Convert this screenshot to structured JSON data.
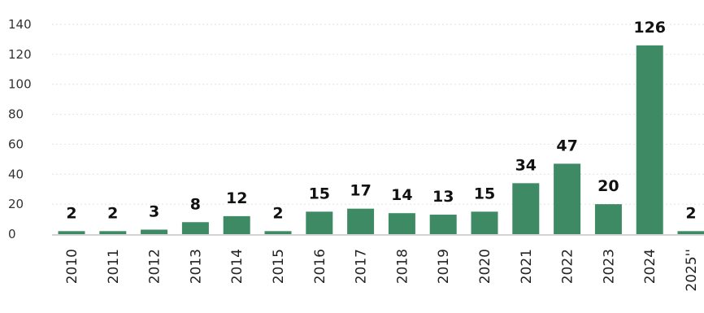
{
  "chart_data": {
    "type": "bar",
    "categories": [
      "2010",
      "2011",
      "2012",
      "2013",
      "2014",
      "2015",
      "2016",
      "2017",
      "2018",
      "2019",
      "2020",
      "2021",
      "2022",
      "2023",
      "2024",
      "2025''"
    ],
    "values": [
      2,
      2,
      3,
      8,
      12,
      2,
      15,
      17,
      14,
      13,
      15,
      34,
      47,
      20,
      126,
      2
    ],
    "data_labels": [
      "2",
      "2",
      "3",
      "8",
      "12",
      "2",
      "15",
      "17",
      "14",
      "13",
      "15",
      "34",
      "47",
      "20",
      "126",
      "2"
    ],
    "ylim": [
      0,
      140
    ],
    "yticks": [
      0,
      20,
      40,
      60,
      80,
      100,
      120,
      140
    ],
    "ytick_labels": [
      "0",
      "20",
      "40",
      "60",
      "80",
      "100",
      "120",
      "140"
    ],
    "grid": true,
    "legend": "none",
    "bar_color": "#3e8a64",
    "title": "",
    "xlabel": "",
    "ylabel": ""
  }
}
